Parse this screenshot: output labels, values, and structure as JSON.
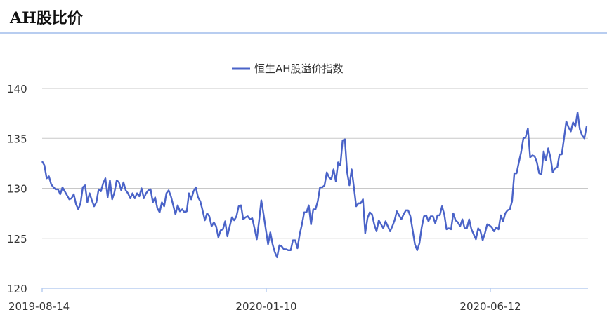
{
  "header": {
    "title": "AH股比价"
  },
  "chart_data": {
    "type": "line",
    "title": "",
    "xlabel": "",
    "ylabel": "",
    "ylim": [
      120,
      140
    ],
    "yticks": [
      "140",
      "135",
      "130",
      "125",
      "120"
    ],
    "xtick_labels": [
      "2019-08-14",
      "2020-01-10",
      "2020-06-12"
    ],
    "legend_position": "top-center",
    "grid": true,
    "colors": {
      "series": "#4a63c8",
      "grid": "#c8c8c8",
      "axis": "#b8cdf0"
    },
    "series": [
      {
        "name": "恒生AH股溢价指数",
        "values": [
          132.7,
          132.3,
          131.0,
          131.2,
          130.4,
          130.1,
          129.9,
          129.9,
          129.4,
          130.1,
          129.7,
          129.3,
          128.9,
          129.0,
          129.4,
          128.4,
          127.9,
          128.5,
          130.1,
          130.3,
          128.6,
          129.5,
          128.8,
          128.2,
          128.6,
          129.9,
          129.7,
          130.5,
          131.0,
          129.1,
          130.8,
          128.9,
          129.6,
          130.8,
          130.6,
          129.8,
          130.6,
          129.8,
          129.5,
          129.0,
          129.5,
          129.0,
          129.5,
          129.2,
          130.0,
          129.0,
          129.5,
          129.8,
          129.9,
          128.6,
          129.1,
          128.0,
          127.6,
          128.6,
          128.2,
          129.5,
          129.8,
          129.2,
          128.3,
          127.4,
          128.3,
          127.7,
          127.9,
          127.6,
          127.7,
          129.5,
          128.9,
          129.7,
          130.1,
          129.1,
          128.7,
          127.8,
          126.8,
          127.5,
          127.2,
          126.2,
          126.6,
          126.2,
          125.1,
          125.8,
          125.9,
          126.7,
          125.2,
          126.2,
          127.1,
          126.8,
          127.2,
          128.2,
          128.3,
          126.9,
          127.1,
          127.2,
          126.9,
          127.0,
          126.0,
          124.9,
          126.7,
          128.8,
          127.4,
          125.9,
          124.4,
          125.6,
          124.4,
          123.6,
          123.1,
          124.3,
          124.2,
          123.9,
          123.9,
          123.8,
          123.8,
          124.8,
          124.8,
          124.0,
          125.4,
          126.4,
          127.6,
          127.6,
          128.3,
          126.4,
          127.9,
          127.9,
          128.7,
          130.1,
          130.1,
          130.3,
          131.6,
          131.1,
          130.9,
          131.9,
          130.7,
          132.6,
          132.3,
          134.8,
          134.9,
          131.6,
          130.3,
          131.9,
          130.1,
          128.2,
          128.5,
          128.5,
          128.9,
          125.5,
          127.0,
          127.6,
          127.4,
          126.4,
          125.7,
          126.8,
          126.4,
          126.0,
          126.7,
          126.2,
          125.7,
          126.2,
          126.8,
          127.7,
          127.3,
          126.9,
          127.4,
          127.8,
          127.8,
          127.2,
          125.8,
          124.4,
          123.8,
          124.5,
          126.1,
          127.2,
          127.3,
          126.7,
          127.2,
          127.2,
          126.5,
          127.3,
          127.3,
          128.2,
          127.4,
          125.9,
          126.0,
          125.9,
          127.5,
          126.8,
          126.6,
          126.2,
          126.9,
          126.0,
          126.0,
          126.9,
          125.9,
          125.4,
          124.9,
          126.0,
          125.7,
          124.8,
          125.5,
          126.4,
          126.3,
          126.1,
          125.7,
          126.1,
          125.9,
          127.3,
          126.7,
          127.5,
          127.8,
          127.9,
          128.7,
          131.5,
          131.5,
          132.6,
          133.6,
          135.0,
          135.1,
          136.0,
          133.1,
          133.3,
          133.2,
          132.6,
          131.5,
          131.4,
          133.7,
          132.8,
          134.0,
          133.1,
          131.6,
          132.0,
          132.1,
          133.4,
          133.4,
          135.0,
          136.7,
          136.1,
          135.7,
          136.6,
          136.2,
          137.6,
          135.9,
          135.3,
          135.0,
          136.2
        ]
      }
    ]
  }
}
